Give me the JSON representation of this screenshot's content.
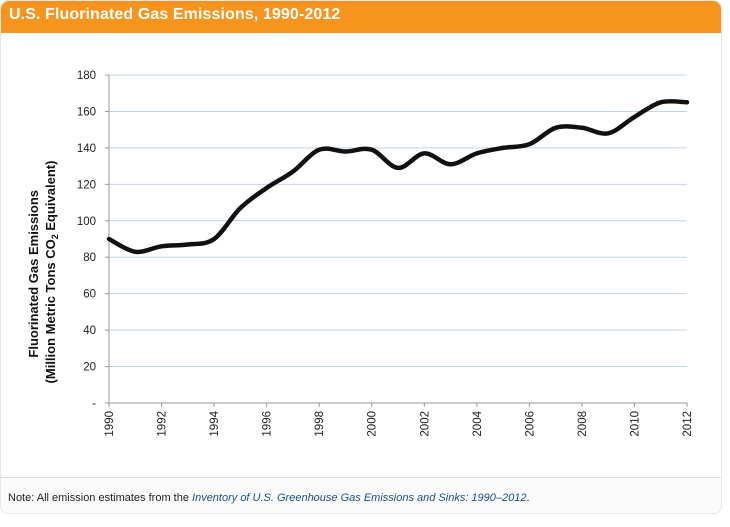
{
  "header": {
    "title": "U.S. Fluorinated Gas Emissions, 1990-2012"
  },
  "chart_data": {
    "type": "line",
    "title": "U.S. Fluorinated Gas Emissions, 1990-2012",
    "ylabel_line1": "Fluorinated Gas Emissions",
    "ylabel_line2_pre": "(Million Metric Tons CO",
    "ylabel_sub": "2",
    "ylabel_line2_post": " Equivalent)",
    "ylim": [
      0,
      180
    ],
    "yticks": [
      0,
      20,
      40,
      60,
      80,
      100,
      120,
      140,
      160,
      180
    ],
    "ytick_labels": [
      "-",
      "20",
      "40",
      "60",
      "80",
      "100",
      "120",
      "140",
      "160",
      "180"
    ],
    "xlim": [
      1990,
      2012
    ],
    "xticks": [
      "1990",
      "1992",
      "1994",
      "1996",
      "1998",
      "2000",
      "2002",
      "2004",
      "2006",
      "2008",
      "2010",
      "2012"
    ],
    "grid": true,
    "x": [
      1990,
      1991,
      1992,
      1993,
      1994,
      1995,
      1996,
      1997,
      1998,
      1999,
      2000,
      2001,
      2002,
      2003,
      2004,
      2005,
      2006,
      2007,
      2008,
      2009,
      2010,
      2011,
      2012
    ],
    "y": [
      90,
      83,
      86,
      87,
      90,
      107,
      118,
      127,
      139,
      138,
      139,
      129,
      137,
      131,
      137,
      140,
      142,
      151,
      151,
      148,
      157,
      165,
      165
    ],
    "color": "#111111"
  },
  "footer": {
    "note_prefix": "Note: All emission estimates from the ",
    "note_link": "Inventory of U.S. Greenhouse Gas Emissions and Sinks: 1990–2012",
    "note_suffix": "."
  }
}
